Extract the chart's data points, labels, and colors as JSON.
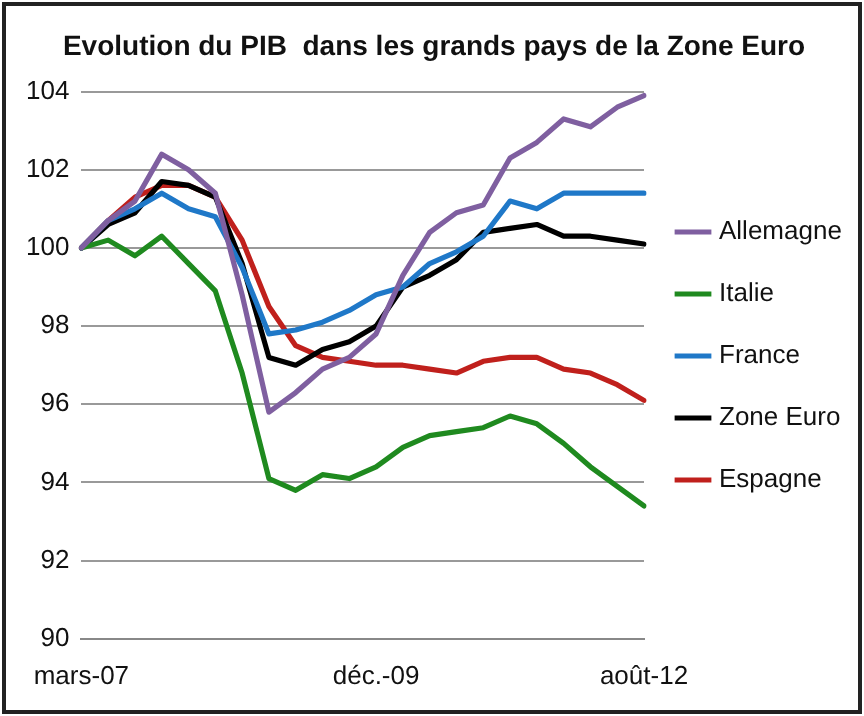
{
  "chart_data": {
    "type": "line",
    "title": "Evolution du PIB  dans les grands pays de la Zone Euro",
    "categories": [
      "mars-07",
      null,
      null,
      null,
      null,
      null,
      null,
      null,
      null,
      null,
      null,
      "déc.-09",
      null,
      null,
      null,
      null,
      null,
      null,
      null,
      null,
      null,
      "août-12"
    ],
    "series": [
      {
        "name": "Allemagne",
        "color": "#7f5fa0",
        "values": [
          100,
          100.7,
          101.2,
          102.4,
          102.0,
          101.4,
          98.8,
          95.8,
          96.3,
          96.9,
          97.2,
          97.8,
          99.3,
          100.4,
          100.9,
          101.1,
          102.3,
          102.7,
          103.3,
          103.1,
          103.6,
          103.9
        ]
      },
      {
        "name": "Italie",
        "color": "#1f8a1f",
        "values": [
          100,
          100.2,
          99.8,
          100.3,
          99.6,
          98.9,
          96.8,
          94.1,
          93.8,
          94.2,
          94.1,
          94.4,
          94.9,
          95.2,
          95.3,
          95.4,
          95.7,
          95.5,
          95.0,
          94.4,
          93.9,
          93.4
        ]
      },
      {
        "name": "France",
        "color": "#1f78c8",
        "values": [
          100,
          100.7,
          101.0,
          101.4,
          101.0,
          100.8,
          99.5,
          97.8,
          97.9,
          98.1,
          98.4,
          98.8,
          99.0,
          99.6,
          99.9,
          100.3,
          101.2,
          101.0,
          101.4,
          101.4,
          101.4,
          101.4
        ]
      },
      {
        "name": "Zone Euro",
        "color": "#000000",
        "values": [
          100,
          100.6,
          100.9,
          101.7,
          101.6,
          101.3,
          99.6,
          97.2,
          97.0,
          97.4,
          97.6,
          98.0,
          99.0,
          99.3,
          99.7,
          100.4,
          100.5,
          100.6,
          100.3,
          100.3,
          100.2,
          100.1
        ]
      },
      {
        "name": "Espagne",
        "color": "#c0201c",
        "values": [
          100,
          100.7,
          101.3,
          101.6,
          101.6,
          101.3,
          100.2,
          98.5,
          97.5,
          97.2,
          97.1,
          97.0,
          97.0,
          96.9,
          96.8,
          97.1,
          97.2,
          97.2,
          96.9,
          96.8,
          96.5,
          96.1
        ]
      }
    ],
    "ylim": [
      90,
      104
    ],
    "yticks": [
      90,
      92,
      94,
      96,
      98,
      100,
      102,
      104
    ],
    "grid": "y",
    "legend": "right",
    "marker": "none",
    "line_style": "solid"
  }
}
